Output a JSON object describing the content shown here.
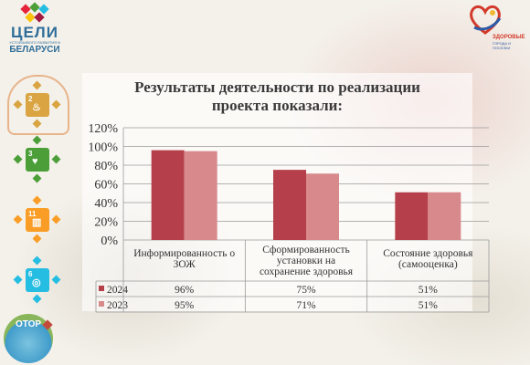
{
  "branding": {
    "left_logo": {
      "title": "ЦЕЛИ",
      "subtitle": "УСТОЙЧИВОГО РАЗВИТИЯ В",
      "country": "БЕЛАРУСИ"
    },
    "sdg_icons": [
      {
        "number": "2",
        "name": "sdg-2-zero-hunger-icon",
        "color": "#d9a441"
      },
      {
        "number": "3",
        "name": "sdg-3-good-health-icon",
        "color": "#4c9f38"
      },
      {
        "number": "11",
        "name": "sdg-11-sustainable-cities-icon",
        "color": "#f99d26"
      },
      {
        "number": "6",
        "name": "sdg-6-clean-water-icon",
        "color": "#26bde2"
      }
    ],
    "bottom_badge": "ОТОР",
    "right_logo": {
      "line1": "ЗДОРОВЫЕ",
      "line2": "ГОРОДА И ПОСЕЛКИ"
    }
  },
  "chart_data": {
    "type": "bar",
    "title": "Результаты деятельности по реализации проекта показали:",
    "title_lines": [
      "Результаты деятельности по реализации",
      "проекта показали:"
    ],
    "categories": [
      "Информированность о ЗОЖ",
      "Сформированность установки на сохранение здоровья",
      "Состояние здоровья (самооценка)"
    ],
    "category_lines": [
      [
        "Информированность о",
        "ЗОЖ"
      ],
      [
        "Сформированность",
        "установки на",
        "сохранение здоровья"
      ],
      [
        "Состояние здоровья",
        "(самооценка)"
      ]
    ],
    "series": [
      {
        "name": "2024",
        "values": [
          96,
          75,
          51
        ],
        "labels": [
          "96%",
          "75%",
          "51%"
        ],
        "color": "#b5404b"
      },
      {
        "name": "2023",
        "values": [
          95,
          71,
          51
        ],
        "labels": [
          "95%",
          "71%",
          "51%"
        ],
        "color": "#d7898c"
      }
    ],
    "yticks": [
      "0%",
      "20%",
      "40%",
      "60%",
      "80%",
      "100%",
      "120%"
    ],
    "ylim": [
      0,
      120
    ],
    "grid": true,
    "legend": "data-table"
  }
}
